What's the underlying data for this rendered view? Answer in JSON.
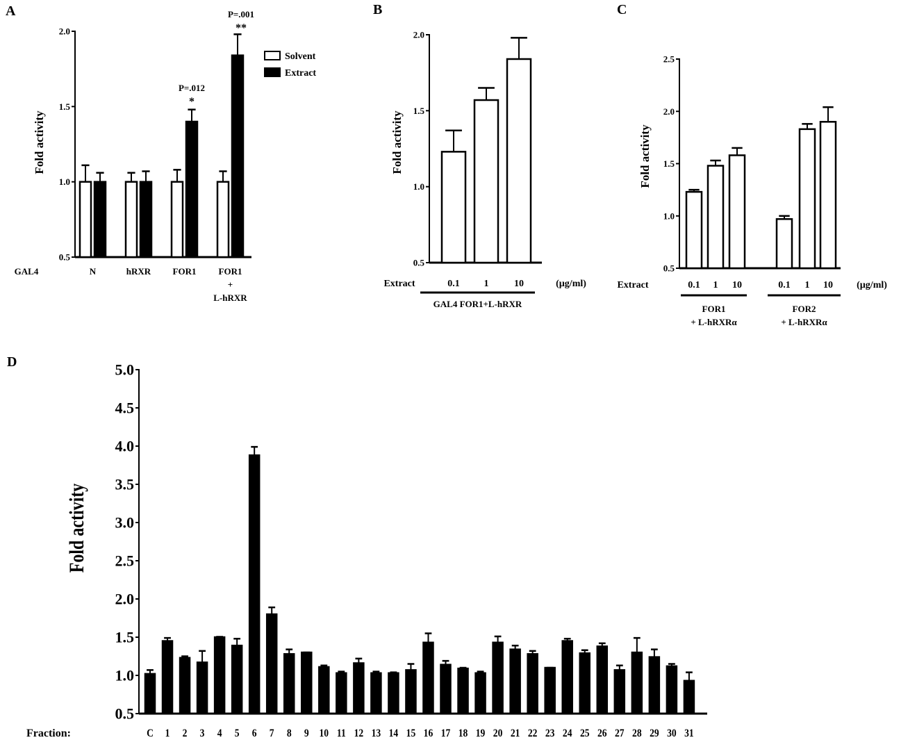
{
  "chart_data": [
    {
      "panel": "A",
      "type": "bar",
      "ylabel": "Fold activity",
      "ylim": [
        0.5,
        2.0
      ],
      "yticks": [
        "0.5",
        "1.0",
        "1.5",
        "2.0"
      ],
      "xlabel_prefix": "GAL4",
      "categories": [
        "N",
        "hRXR",
        "FOR1",
        "FOR1\n+\nL-hRXR"
      ],
      "legend": {
        "placement": "top-right",
        "entries": [
          "Solvent",
          "Extract"
        ]
      },
      "series": [
        {
          "name": "Solvent",
          "fill": "#ffffff",
          "values": [
            1.0,
            1.0,
            1.0,
            1.0
          ],
          "errors": [
            0.11,
            0.06,
            0.08,
            0.07
          ]
        },
        {
          "name": "Extract",
          "fill": "#000000",
          "values": [
            1.0,
            1.0,
            1.4,
            1.84
          ],
          "errors": [
            0.06,
            0.07,
            0.08,
            0.14
          ]
        }
      ],
      "annotations": [
        {
          "category": "FOR1",
          "p": "P=.012",
          "stars": "*"
        },
        {
          "category": "FOR1\n+\nL-hRXR",
          "p": "P=.001",
          "stars": "**"
        }
      ]
    },
    {
      "panel": "B",
      "type": "bar",
      "ylabel": "Fold activity",
      "ylim": [
        0.5,
        2.0
      ],
      "yticks": [
        "0.5",
        "1.0",
        "1.5",
        "2.0"
      ],
      "xlabel_prefix": "Extract",
      "xunit": "(µg/ml)",
      "categories": [
        "0.1",
        "1",
        "10"
      ],
      "groups": [
        "GAL4 FOR1+L-hRXR"
      ],
      "series": [
        {
          "name": "Extract",
          "fill": "#ffffff",
          "values": [
            1.23,
            1.57,
            1.84
          ],
          "errors": [
            0.14,
            0.08,
            0.14
          ]
        }
      ]
    },
    {
      "panel": "C",
      "type": "bar",
      "ylabel": "Fold activity",
      "ylim": [
        0.5,
        2.5
      ],
      "yticks": [
        "0.5",
        "1.0",
        "1.5",
        "2.0",
        "2.5"
      ],
      "xlabel_prefix": "Extract",
      "xunit": "(µg/ml)",
      "categories": [
        "0.1",
        "1",
        "10",
        "0.1",
        "1",
        "10"
      ],
      "groups": [
        "FOR1\n+ L-hRXRα",
        "FOR2\n+ L-hRXRα"
      ],
      "series": [
        {
          "name": "Extract",
          "fill": "#ffffff",
          "values": [
            1.23,
            1.48,
            1.58,
            0.97,
            1.83,
            1.9
          ],
          "errors": [
            0.02,
            0.05,
            0.07,
            0.03,
            0.05,
            0.14
          ]
        }
      ]
    },
    {
      "panel": "D",
      "type": "bar",
      "ylabel": "Fold activity",
      "ylim": [
        0.5,
        5.0
      ],
      "yticks": [
        "0.5",
        "1.0",
        "1.5",
        "2.0",
        "2.5",
        "3.0",
        "3.5",
        "4.0",
        "4.5",
        "5.0"
      ],
      "xlabel_prefix": "Fraction:",
      "categories": [
        "C",
        "1",
        "2",
        "3",
        "4",
        "5",
        "6",
        "7",
        "8",
        "9",
        "10",
        "11",
        "12",
        "13",
        "14",
        "15",
        "16",
        "17",
        "18",
        "19",
        "20",
        "21",
        "22",
        "23",
        "24",
        "25",
        "26",
        "27",
        "28",
        "29",
        "30",
        "31"
      ],
      "series": [
        {
          "name": "Fraction",
          "fill": "#000000",
          "values": [
            1.02,
            1.45,
            1.23,
            1.17,
            1.5,
            1.39,
            3.88,
            1.8,
            1.28,
            1.3,
            1.11,
            1.03,
            1.16,
            1.03,
            1.03,
            1.07,
            1.43,
            1.14,
            1.09,
            1.03,
            1.43,
            1.34,
            1.28,
            1.1,
            1.45,
            1.29,
            1.38,
            1.07,
            1.3,
            1.24,
            1.12,
            0.93
          ],
          "errors": [
            0.05,
            0.04,
            0.02,
            0.15,
            0.005,
            0.09,
            0.11,
            0.09,
            0.06,
            0.0,
            0.02,
            0.02,
            0.06,
            0.02,
            0.01,
            0.08,
            0.12,
            0.05,
            0.01,
            0.02,
            0.08,
            0.05,
            0.04,
            0.0,
            0.03,
            0.04,
            0.04,
            0.06,
            0.19,
            0.1,
            0.03,
            0.11
          ]
        }
      ]
    }
  ]
}
